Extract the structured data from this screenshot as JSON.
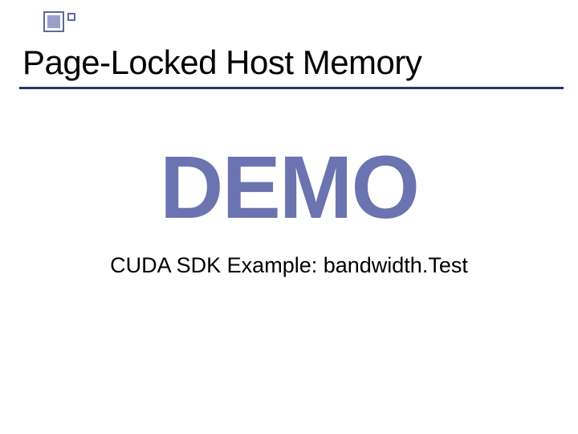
{
  "colors": {
    "accent": "#60689f",
    "accent_light": "#9aa0c8",
    "underline": "#2d3366",
    "text": "#000000",
    "demo_text": "#6b73b0",
    "background": "#ffffff"
  },
  "title": {
    "text": "Page-Locked Host Memory",
    "fontsize": 42,
    "fontweight": 400
  },
  "demo": {
    "text": "DEMO",
    "fontsize": 110,
    "fontweight": 700
  },
  "subtitle": {
    "text": "CUDA SDK Example:  bandwidth.Test",
    "fontsize": 27,
    "fontweight": 400
  }
}
